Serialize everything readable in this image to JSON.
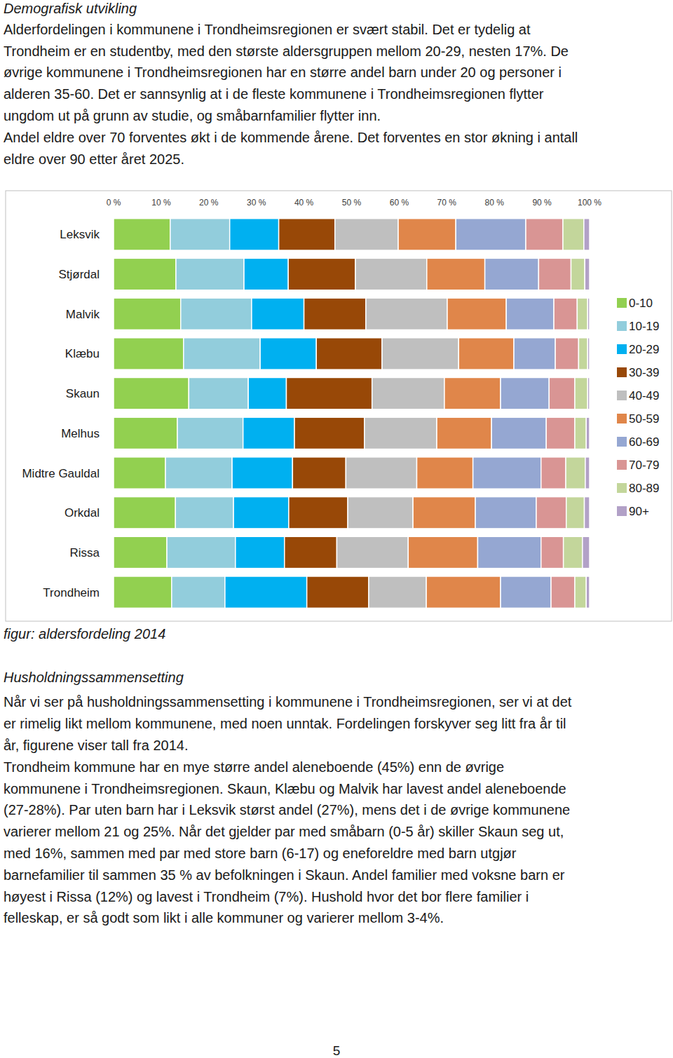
{
  "section1": {
    "heading": "Demografisk utvikling",
    "lines": [
      "Alderfordelingen i kommunene i Trondheimsregionen er svært stabil. Det er tydelig at",
      "Trondheim er en studentby, med den største aldersgruppen mellom 20-29, nesten 17%. De",
      "øvrige kommunene i Trondheimsregionen har en større andel barn under 20 og personer i",
      "alderen 35-60. Det er sannsynlig at i de fleste kommunene i Trondheimsregionen flytter",
      "ungdom ut på grunn av studie, og småbarnfamilier flytter inn.",
      "Andel eldre over 70 forventes økt i de kommende årene. Det forventes en stor økning i antall",
      "eldre over 90 etter året 2025."
    ]
  },
  "chart_data": {
    "type": "bar",
    "orientation": "horizontal",
    "stacked": true,
    "legend": "right",
    "categories": [
      "Leksvik",
      "Stjørdal",
      "Malvik",
      "Klæbu",
      "Skaun",
      "Melhus",
      "Midtre Gauldal",
      "Orkdal",
      "Rissa",
      "Trondheim"
    ],
    "xlim": [
      0,
      100
    ],
    "xticks": [
      {
        "value": 0,
        "label": "0 %"
      },
      {
        "value": 10,
        "label": "10 %"
      },
      {
        "value": 20,
        "label": "20 %"
      },
      {
        "value": 30,
        "label": "30 %"
      },
      {
        "value": 40,
        "label": "40 %"
      },
      {
        "value": 50,
        "label": "50 %"
      },
      {
        "value": 60,
        "label": "60 %"
      },
      {
        "value": 70,
        "label": "70 %"
      },
      {
        "value": 80,
        "label": "80 %"
      },
      {
        "value": 90,
        "label": "90 %"
      },
      {
        "value": 100,
        "label": "100 %"
      }
    ],
    "series": [
      {
        "name": "0-10",
        "color": "#92d050",
        "values": [
          11.9,
          13.1,
          14.1,
          14.7,
          15.8,
          13.4,
          10.9,
          13.0,
          11.2,
          12.2
        ]
      },
      {
        "name": "10-19",
        "color": "#92cddc",
        "values": [
          12.5,
          14.3,
          14.9,
          16.1,
          12.5,
          13.8,
          14.0,
          12.2,
          14.4,
          11.2
        ]
      },
      {
        "name": "20-29",
        "color": "#00b0f0",
        "values": [
          10.3,
          9.3,
          11.0,
          11.8,
          8.0,
          10.8,
          12.7,
          11.6,
          10.3,
          17.2
        ]
      },
      {
        "name": "30-39",
        "color": "#984807",
        "values": [
          11.8,
          14.1,
          13.0,
          13.8,
          18.0,
          14.7,
          11.2,
          12.4,
          11.0,
          13.0
        ]
      },
      {
        "name": "40-49",
        "color": "#bfbfbf",
        "values": [
          13.3,
          15.0,
          17.1,
          16.1,
          15.2,
          15.2,
          14.9,
          13.7,
          15.0,
          12.1
        ]
      },
      {
        "name": "50-59",
        "color": "#e0864a",
        "values": [
          12.1,
          12.2,
          12.4,
          11.6,
          11.8,
          11.5,
          11.8,
          13.1,
          14.6,
          15.6
        ]
      },
      {
        "name": "60-69",
        "color": "#95a7d2",
        "values": [
          14.7,
          11.3,
          10.0,
          8.7,
          10.2,
          11.5,
          14.3,
          12.8,
          13.3,
          10.6
        ]
      },
      {
        "name": "70-79",
        "color": "#d99594",
        "values": [
          7.8,
          6.8,
          4.9,
          4.9,
          5.4,
          6.0,
          5.2,
          6.3,
          4.7,
          5.0
        ]
      },
      {
        "name": "80-89",
        "color": "#c3d69b",
        "values": [
          4.4,
          2.9,
          2.2,
          1.9,
          2.7,
          2.4,
          4.1,
          3.8,
          4.0,
          2.4
        ]
      },
      {
        "name": "90+",
        "color": "#b2a1c7",
        "values": [
          1.2,
          1.0,
          0.4,
          0.4,
          0.4,
          0.7,
          0.9,
          1.1,
          1.5,
          0.7
        ]
      }
    ]
  },
  "caption": "figur: aldersfordeling 2014",
  "section2": {
    "heading": "Husholdningssammensetting",
    "lines": [
      "Når vi ser på husholdningssammensetting i kommunene i Trondheimsregionen, ser vi at det",
      "er rimelig likt mellom kommunene, med noen unntak. Fordelingen forskyver seg litt fra år til",
      "år, figurene viser tall fra 2014.",
      "Trondheim kommune har en mye større andel aleneboende (45%) enn de øvrige",
      "kommunene i Trondheimsregionen. Skaun, Klæbu og Malvik har lavest andel aleneboende",
      "(27-28%). Par uten barn har i Leksvik størst andel (27%), mens det i de øvrige kommunene",
      "varierer mellom 21 og 25%. Når det gjelder par med småbarn (0-5 år) skiller Skaun seg ut,",
      "med 16%, sammen med par med store barn (6-17) og eneforeldre med barn utgjør",
      "barnefamilier til sammen 35 % av befolkningen i Skaun. Andel familier med voksne barn er",
      "høyest i Rissa (12%) og lavest i Trondheim (7%). Hushold hvor det bor flere familier i",
      "felleskap, er så godt som likt i alle kommuner og varierer mellom 3-4%."
    ]
  },
  "page_number": 5
}
